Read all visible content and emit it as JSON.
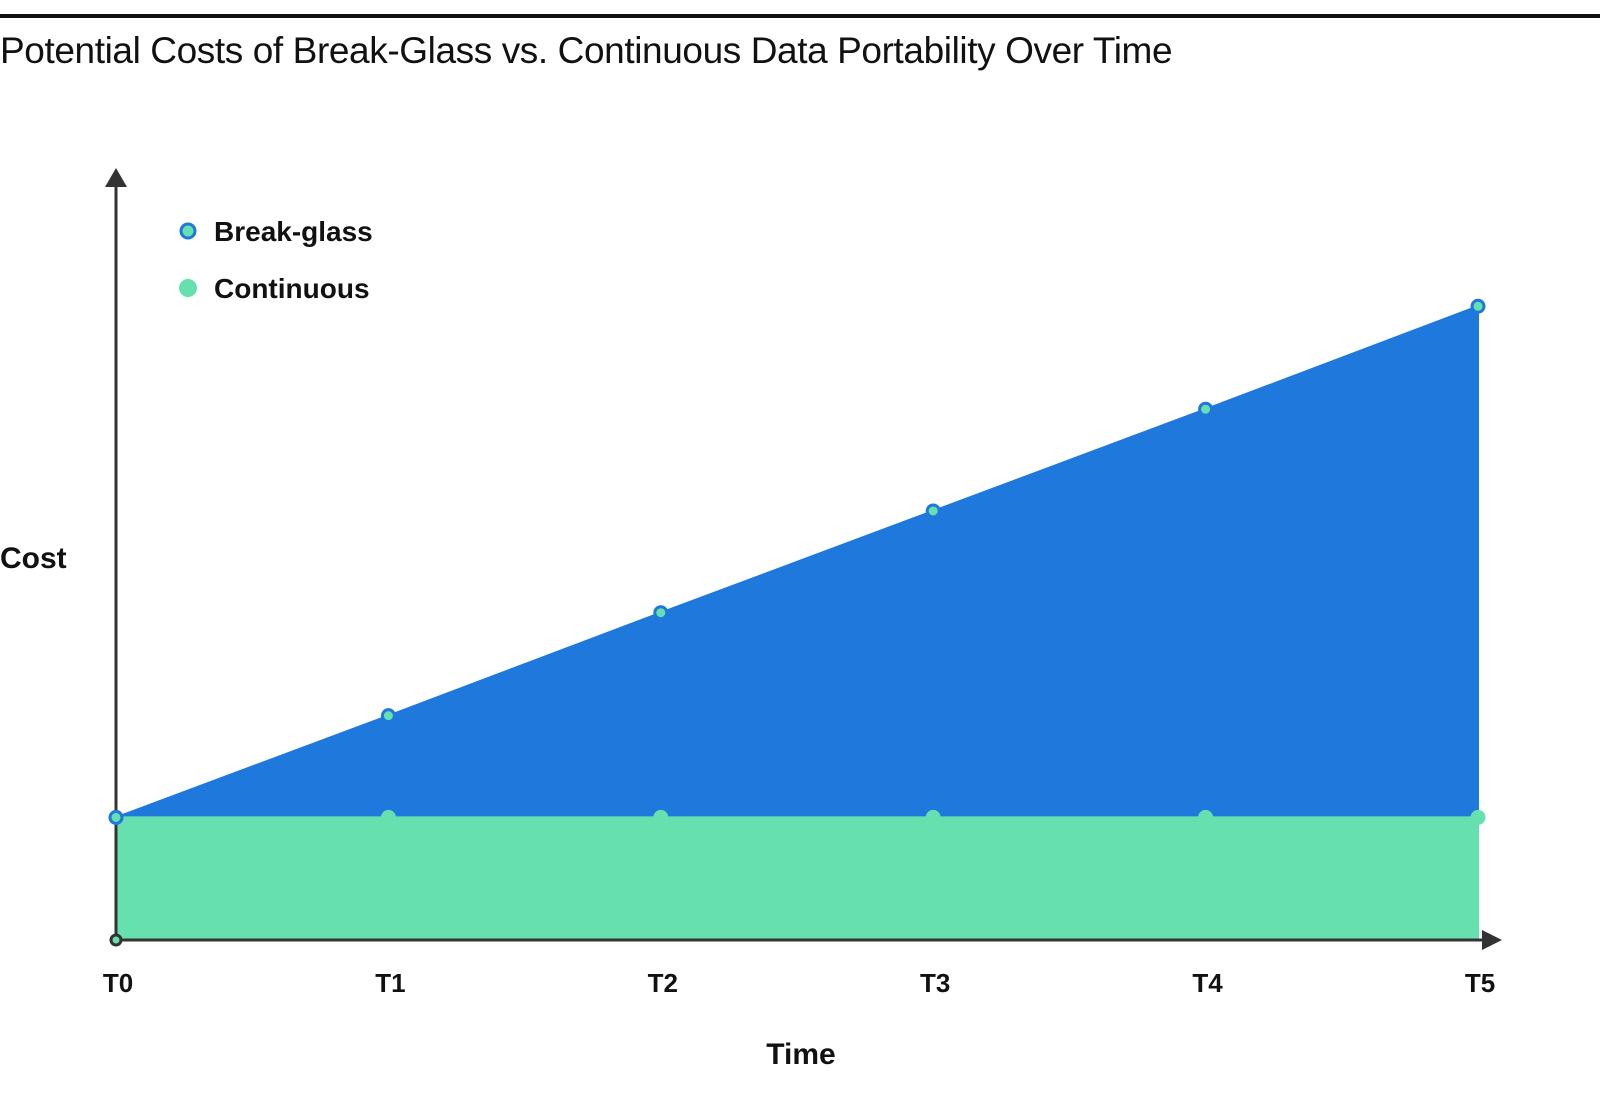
{
  "chart_data": {
    "type": "area",
    "title": "Potential Costs of Break-Glass vs. Continuous Data Portability Over Time",
    "xlabel": "Time",
    "ylabel": "Cost",
    "categories": [
      "T0",
      "T1",
      "T2",
      "T3",
      "T4",
      "T5"
    ],
    "series": [
      {
        "name": "Break-glass",
        "values": [
          1.0,
          1.83,
          2.67,
          3.5,
          4.33,
          5.17
        ],
        "color": "#1f78dc"
      },
      {
        "name": "Continuous",
        "values": [
          1.0,
          1.0,
          1.0,
          1.0,
          1.0,
          1.0
        ],
        "color": "#67e0b0"
      }
    ],
    "ylim": [
      0,
      6.2
    ],
    "grid": false,
    "legend": "top-left",
    "marker_colors": {
      "point_fill": "#67e0b0",
      "point_outline": "#1f78dc",
      "axis": "#333333"
    }
  }
}
